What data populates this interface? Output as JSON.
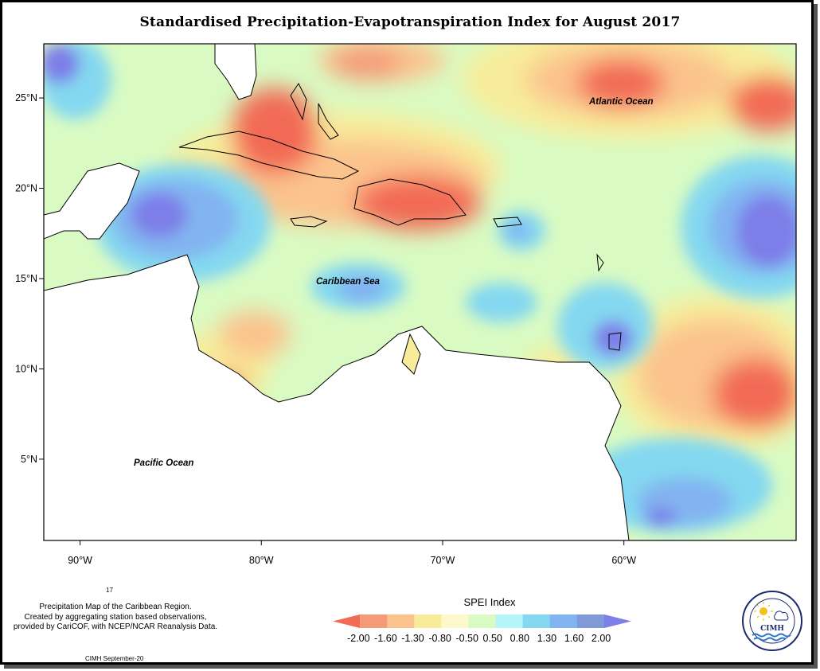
{
  "title": "Standardised Precipitation-Evapotranspiration Index for August 2017",
  "map": {
    "lon_range": [
      -92,
      -50.5
    ],
    "lat_range": [
      0.5,
      28
    ],
    "x_ticks": [
      "90°W",
      "80°W",
      "70°W",
      "60°W"
    ],
    "y_ticks": [
      "25°N",
      "20°N",
      "15°N",
      "10°N",
      "5°N"
    ],
    "labels": {
      "atlantic": "Atlantic Ocean",
      "caribbean": "Caribbean Sea",
      "pacific": "Pacific Ocean"
    }
  },
  "legend": {
    "title": "SPEI Index",
    "breaks": [
      "-2.00",
      "-1.60",
      "-1.30",
      "-0.80",
      "-0.50",
      "0.50",
      "0.80",
      "1.30",
      "1.60",
      "2.00"
    ],
    "colors": [
      "#f26b55",
      "#f59a78",
      "#fbc38d",
      "#f8ec9a",
      "#fdf9cc",
      "#d9fbc3",
      "#b4f6f7",
      "#84d8f0",
      "#82b4f1",
      "#7f9ad6",
      "#7d7ee8"
    ]
  },
  "footnote": {
    "small_number": "17",
    "line1": "Precipitation Map of the Caribbean Region.",
    "line2": "Created by aggregating station based observations,",
    "line3": "provided by CariCOF, with NCEP/NCAR Reanalysis Data.",
    "issued": "CIMH September-20"
  },
  "logo": {
    "text": "CIMH",
    "ring_text": "Caribbean Institute for Meteorology and Hydrology"
  }
}
